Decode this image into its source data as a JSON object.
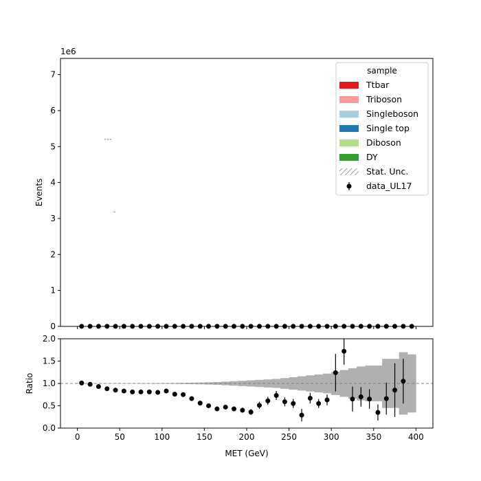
{
  "chart_data": [
    {
      "type": "scatter",
      "panel": "main",
      "xlabel": "",
      "ylabel": "Events",
      "offset_text": "1e6",
      "xlim": [
        -20,
        420
      ],
      "ylim": [
        0,
        7.45
      ],
      "y_scale_factor": 1000000,
      "yticks": [
        0,
        1,
        2,
        3,
        4,
        5,
        6,
        7
      ],
      "ytick_labels": [
        "0",
        "1",
        "2",
        "3",
        "4",
        "5",
        "6",
        "7"
      ],
      "legend": {
        "title": "sample",
        "placement": "upper right",
        "entries": [
          {
            "label": "Ttbar",
            "color": "#e31a1c",
            "kind": "patch"
          },
          {
            "label": "Triboson",
            "color": "#fb9a99",
            "kind": "patch"
          },
          {
            "label": "Singleboson",
            "color": "#a6cee3",
            "kind": "patch"
          },
          {
            "label": "Single top",
            "color": "#1f78b4",
            "kind": "patch"
          },
          {
            "label": "Diboson",
            "color": "#b2df8a",
            "kind": "patch"
          },
          {
            "label": "DY",
            "color": "#33a02c",
            "kind": "patch"
          },
          {
            "label": "Stat. Unc.",
            "color": "#888888",
            "kind": "hatch"
          },
          {
            "label": "data_UL17",
            "color": "#000000",
            "kind": "errorbar"
          }
        ]
      },
      "series": [
        {
          "name": "data_UL17",
          "x": [
            5,
            15,
            25,
            35,
            45,
            55,
            65,
            75,
            85,
            95,
            105,
            115,
            125,
            135,
            145,
            155,
            165,
            175,
            185,
            195,
            205,
            215,
            225,
            235,
            245,
            255,
            265,
            275,
            285,
            295,
            305,
            315,
            325,
            335,
            345,
            355,
            365,
            375,
            385,
            395
          ],
          "y": [
            0.002,
            0.002,
            0.002,
            0.002,
            0.002,
            0.002,
            0.002,
            0.002,
            0.002,
            0.002,
            0.002,
            0.002,
            0.002,
            0.002,
            0.002,
            0.002,
            0.002,
            0.002,
            0.002,
            0.002,
            0.002,
            0.002,
            0.002,
            0.002,
            0.002,
            0.002,
            0.002,
            0.002,
            0.002,
            0.002,
            0.002,
            0.002,
            0.002,
            0.002,
            0.002,
            0.002,
            0.002,
            0.002,
            0.002,
            0.002
          ]
        }
      ],
      "artifacts": [
        {
          "x": [
            32,
            40
          ],
          "y": 5.2
        },
        {
          "x": [
            43,
            46
          ],
          "y": 3.18
        }
      ]
    },
    {
      "type": "scatter",
      "panel": "ratio",
      "xlabel": "MET (GeV)",
      "ylabel": "Ratio",
      "xlim": [
        -20,
        420
      ],
      "ylim": [
        0,
        2.0
      ],
      "xticks": [
        0,
        50,
        100,
        150,
        200,
        250,
        300,
        350,
        400
      ],
      "xtick_labels": [
        "0",
        "50",
        "100",
        "150",
        "200",
        "250",
        "300",
        "350",
        "400"
      ],
      "yticks": [
        0,
        0.5,
        1.0,
        1.5,
        2.0
      ],
      "ytick_labels": [
        "0.0",
        "0.5",
        "1.0",
        "1.5",
        "2.0"
      ],
      "reference_line": 1.0,
      "unc_band": {
        "color": "#b0b0b0",
        "edges": [
          0,
          10,
          20,
          30,
          40,
          50,
          60,
          70,
          80,
          90,
          100,
          110,
          120,
          130,
          140,
          150,
          160,
          170,
          180,
          190,
          200,
          210,
          220,
          230,
          240,
          250,
          260,
          270,
          280,
          290,
          300,
          310,
          320,
          330,
          340,
          350,
          360,
          370,
          380,
          390,
          400
        ],
        "half_width": [
          0.004,
          0.004,
          0.004,
          0.004,
          0.004,
          0.005,
          0.005,
          0.006,
          0.006,
          0.007,
          0.008,
          0.01,
          0.013,
          0.016,
          0.02,
          0.025,
          0.03,
          0.04,
          0.05,
          0.06,
          0.07,
          0.08,
          0.09,
          0.1,
          0.12,
          0.14,
          0.16,
          0.18,
          0.2,
          0.22,
          0.26,
          0.3,
          0.34,
          0.38,
          0.4,
          0.4,
          0.55,
          0.55,
          0.7,
          0.65
        ]
      },
      "series": [
        {
          "name": "data_UL17",
          "x": [
            5,
            15,
            25,
            35,
            45,
            55,
            65,
            75,
            85,
            95,
            105,
            115,
            125,
            135,
            145,
            155,
            165,
            175,
            185,
            195,
            205,
            215,
            225,
            235,
            245,
            255,
            265,
            275,
            285,
            295,
            305,
            315,
            325,
            335,
            345,
            355,
            365,
            375,
            385
          ],
          "y": [
            1.01,
            0.98,
            0.93,
            0.88,
            0.85,
            0.83,
            0.81,
            0.81,
            0.81,
            0.8,
            0.83,
            0.76,
            0.75,
            0.66,
            0.56,
            0.5,
            0.43,
            0.47,
            0.43,
            0.4,
            0.36,
            0.51,
            0.61,
            0.73,
            0.59,
            0.55,
            0.29,
            0.67,
            0.55,
            0.63,
            1.24,
            1.72,
            0.65,
            0.7,
            0.65,
            0.35,
            0.66,
            0.85,
            1.05
          ],
          "yerr": [
            0.003,
            0.003,
            0.003,
            0.003,
            0.004,
            0.005,
            0.006,
            0.006,
            0.007,
            0.008,
            0.01,
            0.012,
            0.015,
            0.02,
            0.025,
            0.03,
            0.035,
            0.045,
            0.05,
            0.055,
            0.065,
            0.08,
            0.09,
            0.1,
            0.1,
            0.1,
            0.14,
            0.12,
            0.1,
            0.12,
            0.42,
            0.3,
            0.28,
            0.22,
            0.22,
            0.18,
            0.36,
            0.6,
            0.5
          ]
        }
      ]
    }
  ]
}
